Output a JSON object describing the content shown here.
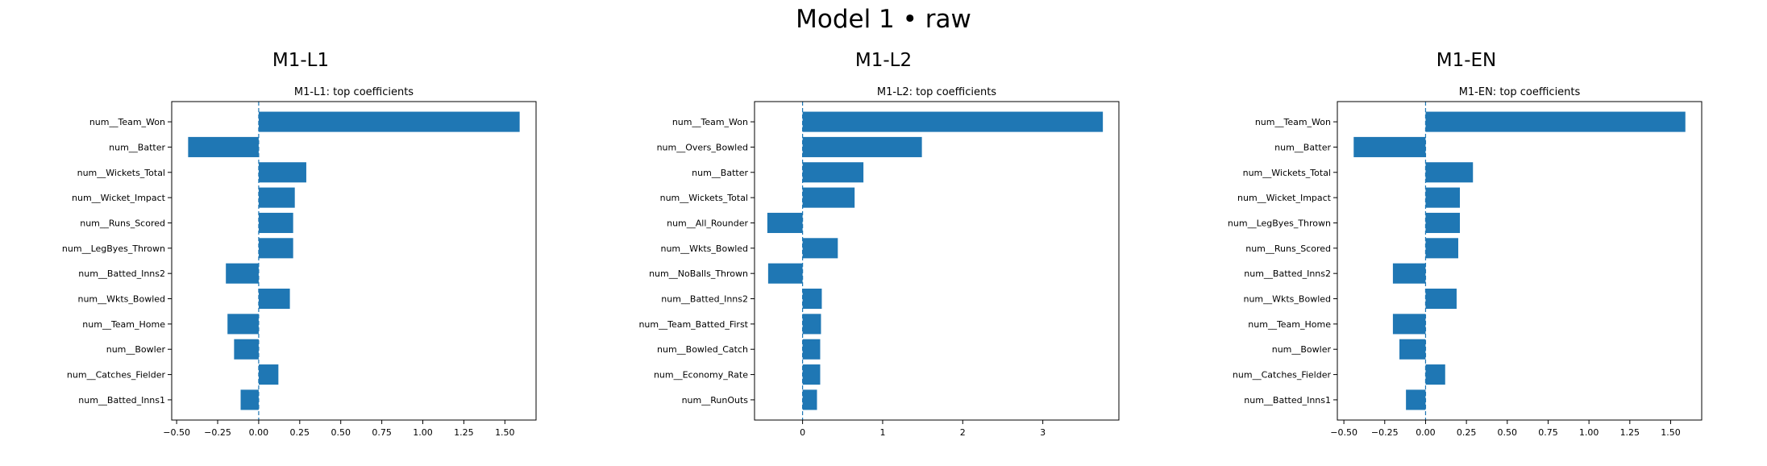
{
  "figure": {
    "title": "Model 1 • raw"
  },
  "colors": {
    "bar": "#1f77b4",
    "zero_line": "#1f77b4"
  },
  "chart_data": [
    {
      "type": "bar",
      "orientation": "horizontal",
      "panel_title": "M1-L1",
      "title": "M1-L1: top coefficients",
      "xlim": [
        -0.53,
        1.69
      ],
      "xticks": [
        -0.5,
        -0.25,
        0,
        0.25,
        0.5,
        0.75,
        1,
        1.25,
        1.5
      ],
      "xtick_labels": [
        "−0.50",
        "−0.25",
        "0.00",
        "0.25",
        "0.50",
        "0.75",
        "1.00",
        "1.25",
        "1.50"
      ],
      "zero_line": "dashed",
      "categories": [
        "num__Team_Won",
        "num__Batter",
        "num__Wickets_Total",
        "num__Wicket_Impact",
        "num__Runs_Scored",
        "num__LegByes_Thrown",
        "num__Batted_Inns2",
        "num__Wkts_Bowled",
        "num__Team_Home",
        "num__Bowler",
        "num__Catches_Fielder",
        "num__Batted_Inns1"
      ],
      "values": [
        1.59,
        -0.43,
        0.29,
        0.22,
        0.21,
        0.21,
        -0.2,
        0.19,
        -0.19,
        -0.15,
        0.12,
        -0.11
      ]
    },
    {
      "type": "bar",
      "orientation": "horizontal",
      "panel_title": "M1-L2",
      "title": "M1-L2: top coefficients",
      "xlim": [
        -0.6,
        3.95
      ],
      "xticks": [
        0,
        1,
        2,
        3
      ],
      "xtick_labels": [
        "0",
        "1",
        "2",
        "3"
      ],
      "zero_line": "dashed",
      "categories": [
        "num__Team_Won",
        "num__Overs_Bowled",
        "num__Batter",
        "num__Wickets_Total",
        "num__All_Rounder",
        "num__Wkts_Bowled",
        "num__NoBalls_Thrown",
        "num__Batted_Inns2",
        "num__Team_Batted_First",
        "num__Bowled_Catch",
        "num__Economy_Rate",
        "num__RunOuts"
      ],
      "values": [
        3.75,
        1.49,
        0.76,
        0.65,
        -0.44,
        0.44,
        -0.43,
        0.24,
        0.23,
        0.22,
        0.22,
        0.18
      ]
    },
    {
      "type": "bar",
      "orientation": "horizontal",
      "panel_title": "M1-EN",
      "title": "M1-EN: top coefficients",
      "xlim": [
        -0.54,
        1.69
      ],
      "xticks": [
        -0.5,
        -0.25,
        0,
        0.25,
        0.5,
        0.75,
        1,
        1.25,
        1.5
      ],
      "xtick_labels": [
        "−0.50",
        "−0.25",
        "0.00",
        "0.25",
        "0.50",
        "0.75",
        "1.00",
        "1.25",
        "1.50"
      ],
      "zero_line": "dashed",
      "categories": [
        "num__Team_Won",
        "num__Batter",
        "num__Wickets_Total",
        "num__Wicket_Impact",
        "num__LegByes_Thrown",
        "num__Runs_Scored",
        "num__Batted_Inns2",
        "num__Wkts_Bowled",
        "num__Team_Home",
        "num__Bowler",
        "num__Catches_Fielder",
        "num__Batted_Inns1"
      ],
      "values": [
        1.59,
        -0.44,
        0.29,
        0.21,
        0.21,
        0.2,
        -0.2,
        0.19,
        -0.2,
        -0.16,
        0.12,
        -0.12
      ]
    }
  ]
}
